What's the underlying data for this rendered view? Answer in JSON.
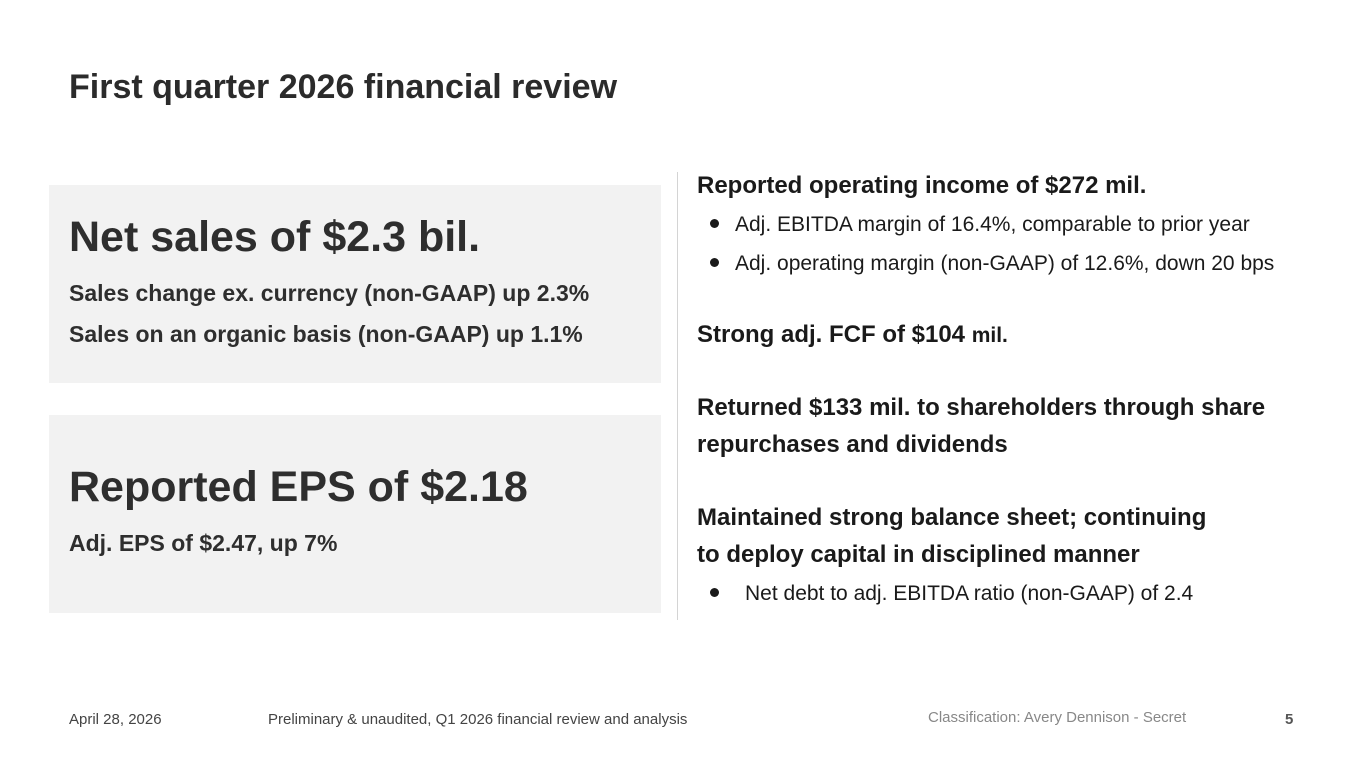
{
  "slide": {
    "title": "First quarter 2026 financial review"
  },
  "sales_card": {
    "headline": "Net sales of $2.3 bil.",
    "line1": "Sales change ex. currency (non-GAAP) up 2.3%",
    "line2": "Sales on an organic basis (non-GAAP) up 1.1%"
  },
  "eps_card": {
    "headline": "Reported EPS of $2.18",
    "line1": "Adj. EPS of $2.47, up 7%"
  },
  "right": {
    "op_income": {
      "heading": "Reported operating income of $272 mil.",
      "bullets": [
        "Adj. EBITDA margin of 16.4%, comparable to prior year",
        "Adj. operating margin (non-GAAP) of 12.6%, down 20 bps"
      ]
    },
    "fcf": {
      "heading_bold": "Strong adj. FCF of $104 ",
      "heading_tail": "mil."
    },
    "returned": {
      "line1": "Returned $133 mil. to shareholders through share",
      "line2": "repurchases and dividends"
    },
    "balance": {
      "line1": "Maintained strong balance sheet; continuing",
      "line2": "to deploy capital in disciplined manner",
      "bullets": [
        "Net debt to adj. EBITDA ratio (non-GAAP) of 2.4"
      ]
    }
  },
  "footer": {
    "date": "April 28, 2026",
    "note": "Preliminary & unaudited, Q1 2026 financial review and analysis",
    "classification": "Classification: Avery Dennison - Secret",
    "page": "5"
  },
  "colors": {
    "card_bg": "#f2f2f2",
    "text": "#222222",
    "divider": "#d4d4d4"
  }
}
